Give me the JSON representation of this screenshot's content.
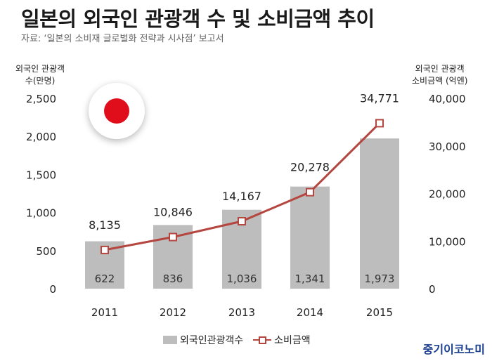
{
  "title": "일본의 외국인 관광객 수 및 소비금액 추이",
  "source": "자료: ‘일본의 소비재 글로벌화 전략과 시사점’ 보고서",
  "brand": "중기이코노미",
  "chart_data": {
    "type": "bar+line",
    "categories": [
      "2011",
      "2012",
      "2013",
      "2014",
      "2015"
    ],
    "series": [
      {
        "name": "외국인관광객수",
        "type": "bar",
        "axis": "left",
        "values": [
          622,
          836,
          1036,
          1341,
          1973
        ],
        "labels": [
          "622",
          "836",
          "1,036",
          "1,341",
          "1,973"
        ],
        "color": "#bdbdbd"
      },
      {
        "name": "소비금액",
        "type": "line",
        "axis": "right",
        "values": [
          8135,
          10846,
          14167,
          20278,
          34771
        ],
        "labels": [
          "8,135",
          "10,846",
          "14,167",
          "20,278",
          "34,771"
        ],
        "color": "#b5463f"
      }
    ],
    "y_left": {
      "label_line1": "외국인 관광객",
      "label_line2": "수(만명)",
      "ylim": [
        0,
        2500
      ],
      "ticks": [
        0,
        500,
        1000,
        1500,
        2000,
        2500
      ],
      "tick_labels": [
        "0",
        "500",
        "1,000",
        "1,500",
        "2,000",
        "2,500"
      ]
    },
    "y_right": {
      "label_line1": "외국인 관광객",
      "label_line2": "소비금액 (억엔)",
      "ylim": [
        0,
        40000
      ],
      "ticks": [
        0,
        10000,
        20000,
        30000,
        40000
      ],
      "tick_labels": [
        "0",
        "10,000",
        "20,000",
        "30,000",
        "40,000"
      ]
    },
    "grid": false,
    "legend_position": "bottom"
  }
}
